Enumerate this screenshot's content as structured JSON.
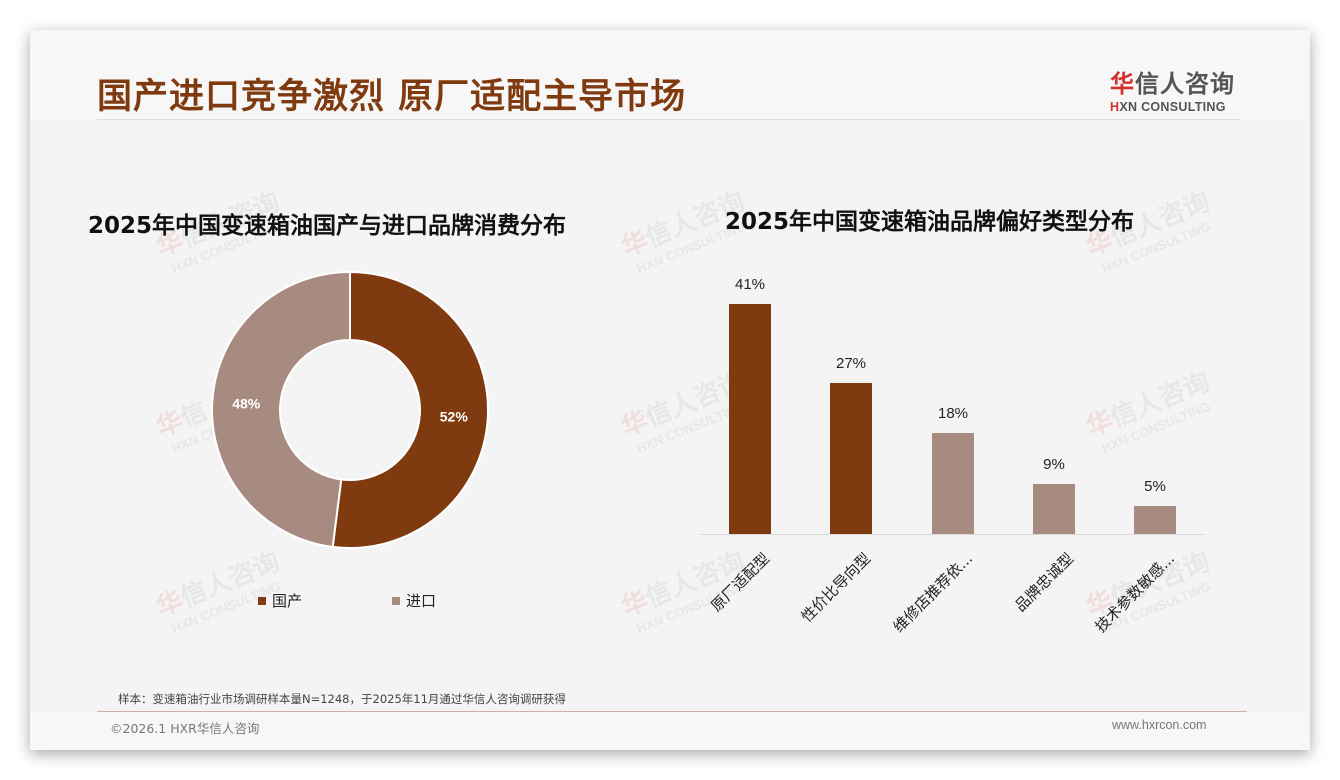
{
  "header": {
    "title": "国产进口竞争激烈 原厂适配主导市场",
    "logo_cn_first": "华",
    "logo_cn_rest": "信人咨询",
    "logo_en_first": "H",
    "logo_en_rest": "XN CONSULTING"
  },
  "watermark": {
    "cn_first": "华",
    "cn_rest": "信人咨询",
    "en": "HXN CONSULTING"
  },
  "colors": {
    "primary": "#7f3b0f",
    "secondary": "#a88b80",
    "title": "#7f3b0f",
    "background": "#f4f4f4"
  },
  "chart_data": [
    {
      "type": "pie",
      "variant": "donut",
      "title": "2025年中国变速箱油国产与进口品牌消费分布",
      "categories": [
        "国产",
        "进口"
      ],
      "values": [
        52,
        48
      ],
      "labels": [
        "52%",
        "48%"
      ],
      "colors": [
        "#7f3b0f",
        "#a88b80"
      ],
      "legend_position": "bottom"
    },
    {
      "type": "bar",
      "title": "2025年中国变速箱油品牌偏好类型分布",
      "categories": [
        "原厂适配型",
        "性价比导向型",
        "维修店推荐依...",
        "品牌忠诚型",
        "技术参数敏感..."
      ],
      "values": [
        41,
        27,
        18,
        9,
        5
      ],
      "labels": [
        "41%",
        "27%",
        "18%",
        "9%",
        "5%"
      ],
      "colors": [
        "#7f3b0f",
        "#7f3b0f",
        "#a88b80",
        "#a88b80",
        "#a88b80"
      ],
      "xlabel": "",
      "ylabel": "",
      "ylim": [
        0,
        45
      ],
      "grid": false,
      "legend_position": "none"
    }
  ],
  "footer": {
    "note": "样本：变速箱油行业市场调研样本量N=1248，于2025年11月通过华信人咨询调研获得",
    "copyright": "©2026.1 HXR华信人咨询",
    "site": "www.hxrcon.com"
  }
}
